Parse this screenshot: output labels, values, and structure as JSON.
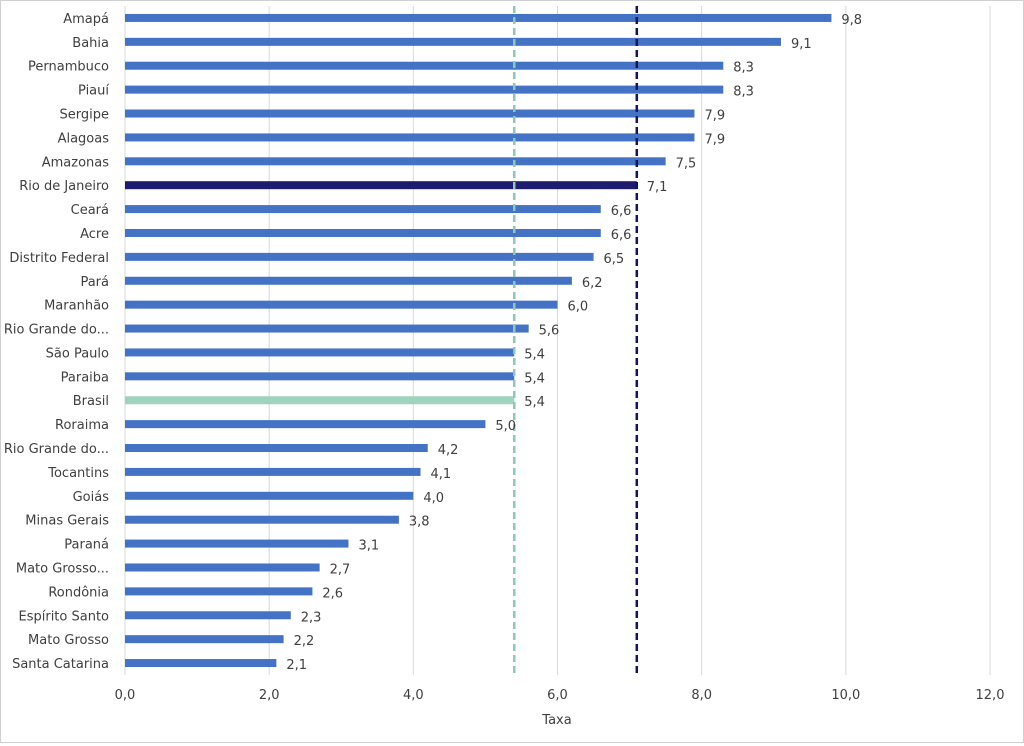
{
  "chart_data": {
    "type": "bar",
    "orientation": "horizontal",
    "title": "",
    "xlabel": "Taxa",
    "ylabel": "",
    "xlim": [
      0,
      12
    ],
    "x_ticks": [
      "0,0",
      "2,0",
      "4,0",
      "6,0",
      "8,0",
      "10,0",
      "12,0"
    ],
    "grid": "vertical",
    "categories": [
      "Amapá",
      "Bahia",
      "Pernambuco",
      "Piauí",
      "Sergipe",
      "Alagoas",
      "Amazonas",
      "Rio de Janeiro",
      "Ceará",
      "Acre",
      "Distrito Federal",
      "Pará",
      "Maranhão",
      "Rio Grande do...",
      "São Paulo",
      "Paraiba",
      "Brasil",
      "Roraima",
      "Rio Grande do...",
      "Tocantins",
      "Goiás",
      "Minas Gerais",
      "Paraná",
      "Mato Grosso...",
      "Rondônia",
      "Espírito Santo",
      "Mato Grosso",
      "Santa Catarina"
    ],
    "values": [
      9.8,
      9.1,
      8.3,
      8.3,
      7.9,
      7.9,
      7.5,
      7.1,
      6.6,
      6.6,
      6.5,
      6.2,
      6.0,
      5.6,
      5.4,
      5.4,
      5.4,
      5.0,
      4.2,
      4.1,
      4.0,
      3.8,
      3.1,
      2.7,
      2.6,
      2.3,
      2.2,
      2.1
    ],
    "value_labels": [
      "9,8",
      "9,1",
      "8,3",
      "8,3",
      "7,9",
      "7,9",
      "7,5",
      "7,1",
      "6,6",
      "6,6",
      "6,5",
      "6,2",
      "6,0",
      "5,6",
      "5,4",
      "5,4",
      "5,4",
      "5,0",
      "4,2",
      "4,1",
      "4,0",
      "3,8",
      "3,1",
      "2,7",
      "2,6",
      "2,3",
      "2,2",
      "2,1"
    ],
    "highlights": {
      "Rio de Janeiro": "#1f1b6e",
      "Brasil": "#9fd3bd"
    },
    "reference_lines": [
      {
        "value": 5.4,
        "color": "#8ec8b9",
        "style": "dashed"
      },
      {
        "value": 7.1,
        "color": "#14145a",
        "style": "dashed"
      }
    ],
    "colors": {
      "bar": "#4472c4",
      "grid": "#d9d9d9",
      "text": "#404040"
    }
  }
}
